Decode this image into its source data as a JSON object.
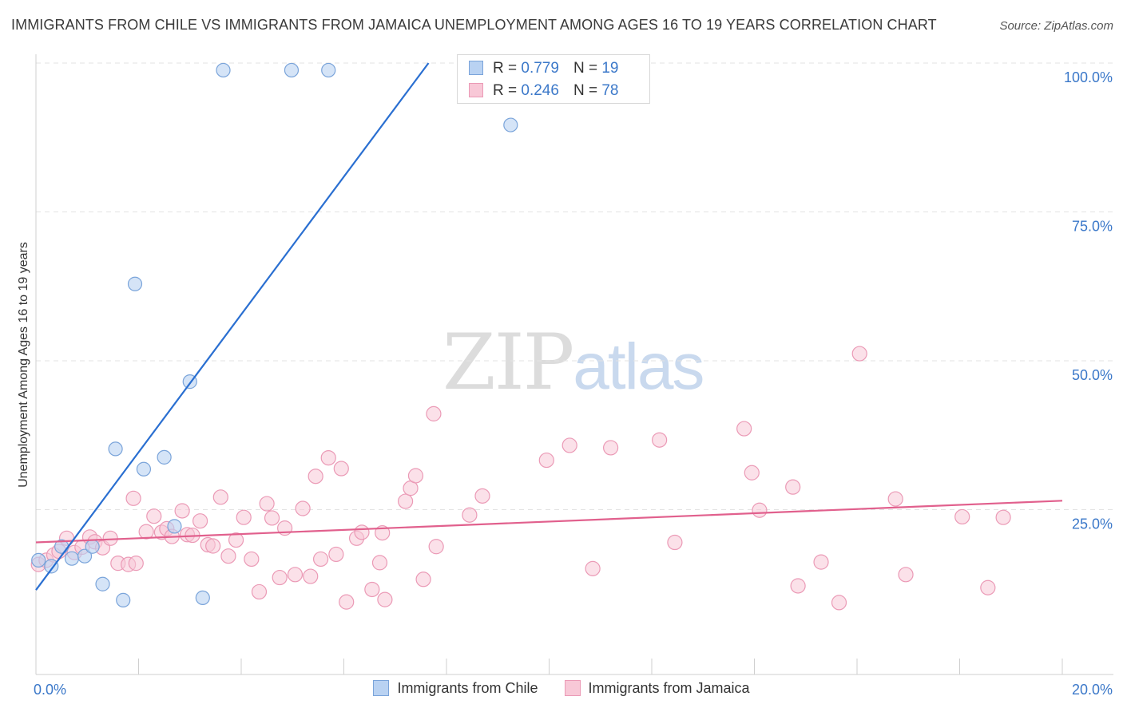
{
  "header": {
    "title": "IMMIGRANTS FROM CHILE VS IMMIGRANTS FROM JAMAICA UNEMPLOYMENT AMONG AGES 16 TO 19 YEARS CORRELATION CHART",
    "source": "Source: ZipAtlas.com"
  },
  "watermark": {
    "zip": "ZIP",
    "atlas": "atlas"
  },
  "legend_top": {
    "rows": [
      {
        "r_label": "R =",
        "r_value": "0.779",
        "n_label": "N =",
        "n_value": "19"
      },
      {
        "r_label": "R =",
        "r_value": "0.246",
        "n_label": "N =",
        "n_value": "78"
      }
    ]
  },
  "legend_bottom": {
    "chile": "Immigrants from Chile",
    "jamaica": "Immigrants from Jamaica"
  },
  "colors": {
    "chile_fill": "#b9d2f2",
    "chile_stroke": "#7aa4da",
    "chile_line": "#2a6fd1",
    "jamaica_fill": "#f8c8d7",
    "jamaica_stroke": "#eb9ab6",
    "jamaica_line": "#e1608d",
    "tick_label": "#3b78c9",
    "grid": "#e3e3e3"
  },
  "chart_data": {
    "type": "scatter",
    "title": "IMMIGRANTS FROM CHILE VS IMMIGRANTS FROM JAMAICA UNEMPLOYMENT AMONG AGES 16 TO 19 YEARS CORRELATION CHART",
    "xlabel": "",
    "ylabel": "Unemployment Among Ages 16 to 19 years",
    "xlim": [
      0,
      20
    ],
    "ylim": [
      0,
      100
    ],
    "x_tick_labels": [
      "0.0%",
      "20.0%"
    ],
    "y_ticks": [
      25,
      50,
      75,
      100
    ],
    "y_tick_labels": [
      "25.0%",
      "50.0%",
      "75.0%",
      "100.0%"
    ],
    "grid": true,
    "series": [
      {
        "name": "Immigrants from Chile",
        "r": 0.779,
        "n": 19,
        "trend": {
          "x": [
            0,
            7.65
          ],
          "y": [
            11.5,
            100
          ]
        },
        "points": [
          [
            0.05,
            16.5
          ],
          [
            0.3,
            15.5
          ],
          [
            0.5,
            18.8
          ],
          [
            0.7,
            16.8
          ],
          [
            0.95,
            17.2
          ],
          [
            1.1,
            18.8
          ],
          [
            1.3,
            12.5
          ],
          [
            1.55,
            35.2
          ],
          [
            1.7,
            9.8
          ],
          [
            1.93,
            62.9
          ],
          [
            2.1,
            31.8
          ],
          [
            2.5,
            33.8
          ],
          [
            2.7,
            22.2
          ],
          [
            3.0,
            46.5
          ],
          [
            3.25,
            10.2
          ],
          [
            3.65,
            98.8
          ],
          [
            4.98,
            98.8
          ],
          [
            5.7,
            98.8
          ],
          [
            9.25,
            89.6
          ]
        ]
      },
      {
        "name": "Immigrants from Jamaica",
        "r": 0.246,
        "n": 78,
        "trend": {
          "x": [
            0,
            20
          ],
          "y": [
            19.5,
            26.5
          ]
        },
        "points": [
          [
            0.05,
            15.8
          ],
          [
            0.2,
            16.5
          ],
          [
            0.35,
            17.4
          ],
          [
            0.45,
            18.0
          ],
          [
            0.6,
            20.2
          ],
          [
            0.75,
            17.8
          ],
          [
            0.9,
            18.7
          ],
          [
            1.05,
            20.4
          ],
          [
            1.15,
            19.6
          ],
          [
            1.3,
            18.6
          ],
          [
            1.45,
            20.2
          ],
          [
            1.6,
            16.0
          ],
          [
            1.8,
            15.8
          ],
          [
            1.95,
            16.0
          ],
          [
            1.9,
            26.9
          ],
          [
            2.15,
            21.3
          ],
          [
            2.3,
            23.9
          ],
          [
            2.45,
            21.2
          ],
          [
            2.55,
            21.8
          ],
          [
            2.65,
            20.5
          ],
          [
            2.85,
            24.8
          ],
          [
            2.95,
            20.8
          ],
          [
            3.05,
            20.7
          ],
          [
            3.2,
            23.1
          ],
          [
            3.35,
            19.1
          ],
          [
            3.45,
            18.9
          ],
          [
            3.6,
            27.1
          ],
          [
            3.75,
            17.2
          ],
          [
            3.9,
            19.9
          ],
          [
            4.05,
            23.7
          ],
          [
            4.2,
            16.7
          ],
          [
            4.35,
            11.2
          ],
          [
            4.5,
            26.0
          ],
          [
            4.6,
            23.6
          ],
          [
            4.75,
            13.6
          ],
          [
            4.85,
            21.9
          ],
          [
            5.05,
            14.1
          ],
          [
            5.2,
            25.2
          ],
          [
            5.35,
            13.8
          ],
          [
            5.45,
            30.6
          ],
          [
            5.55,
            16.7
          ],
          [
            5.7,
            33.7
          ],
          [
            5.85,
            17.5
          ],
          [
            5.95,
            31.9
          ],
          [
            6.05,
            9.5
          ],
          [
            6.25,
            20.2
          ],
          [
            6.35,
            21.2
          ],
          [
            6.55,
            11.6
          ],
          [
            6.7,
            16.1
          ],
          [
            6.75,
            21.1
          ],
          [
            6.8,
            9.9
          ],
          [
            7.2,
            26.4
          ],
          [
            7.3,
            28.6
          ],
          [
            7.4,
            30.7
          ],
          [
            7.55,
            13.3
          ],
          [
            7.75,
            41.1
          ],
          [
            7.8,
            18.8
          ],
          [
            8.45,
            24.1
          ],
          [
            8.7,
            27.3
          ],
          [
            9.95,
            33.3
          ],
          [
            10.4,
            35.8
          ],
          [
            10.85,
            15.1
          ],
          [
            11.2,
            35.4
          ],
          [
            12.15,
            36.7
          ],
          [
            12.45,
            19.5
          ],
          [
            13.8,
            38.6
          ],
          [
            13.95,
            31.2
          ],
          [
            14.1,
            24.9
          ],
          [
            14.75,
            28.8
          ],
          [
            14.85,
            12.2
          ],
          [
            15.3,
            16.2
          ],
          [
            15.65,
            9.4
          ],
          [
            16.05,
            51.2
          ],
          [
            16.75,
            26.8
          ],
          [
            16.95,
            14.1
          ],
          [
            18.05,
            23.8
          ],
          [
            18.55,
            11.9
          ],
          [
            18.85,
            23.7
          ]
        ]
      }
    ]
  }
}
